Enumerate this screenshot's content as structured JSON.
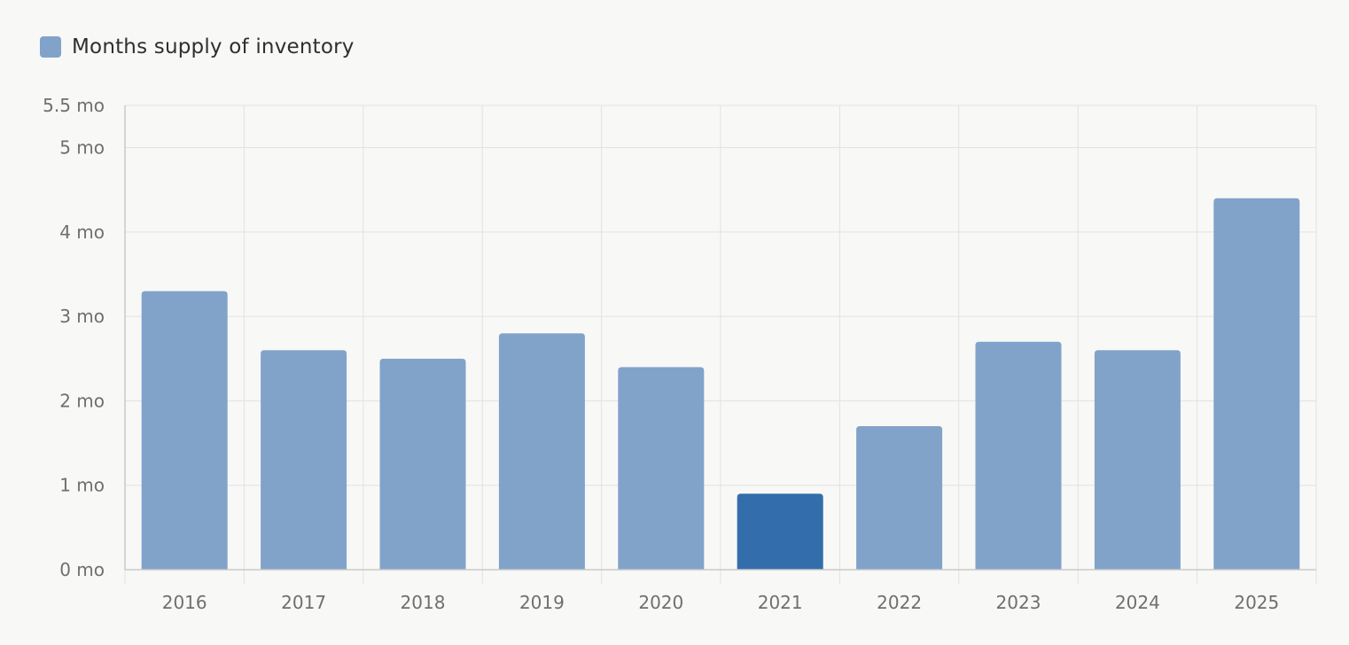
{
  "legend": {
    "label": "Months supply of inventory",
    "color": "#81a3c9"
  },
  "chart_data": {
    "type": "bar",
    "categories": [
      "2016",
      "2017",
      "2018",
      "2019",
      "2020",
      "2021",
      "2022",
      "2023",
      "2024",
      "2025"
    ],
    "series": [
      {
        "name": "Months supply of inventory",
        "values": [
          3.3,
          2.6,
          2.5,
          2.8,
          2.4,
          0.9,
          1.7,
          2.7,
          2.6,
          4.4
        ]
      }
    ],
    "highlighted_category": "2021",
    "ylim": [
      0,
      5.5
    ],
    "yticks": [
      {
        "value": 0,
        "label": "0 mo"
      },
      {
        "value": 1,
        "label": "1 mo"
      },
      {
        "value": 2,
        "label": "2 mo"
      },
      {
        "value": 3,
        "label": "3 mo"
      },
      {
        "value": 4,
        "label": "4 mo"
      },
      {
        "value": 5,
        "label": "5 mo"
      },
      {
        "value": 5.5,
        "label": "5.5 mo"
      }
    ],
    "grid": true,
    "legend_position": "top-left",
    "colors": {
      "bar": "#81a3c9",
      "bar_highlight": "#336dac",
      "grid": "#e2e2e2",
      "axis": "#c9c9c9"
    }
  }
}
